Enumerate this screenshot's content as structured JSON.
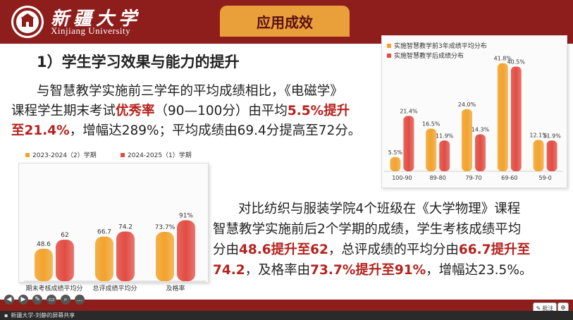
{
  "header": {
    "university_cn": "新疆大学",
    "university_en": "Xinjiang University",
    "slide_title": "应用成效"
  },
  "section_heading": "1）学生学习效果与能力的提升",
  "para1": {
    "t1": "与智慧教学实施前三学年的平均成绩相比，《电磁学》",
    "t2": "课程学生期末考试",
    "h1": "优秀率",
    "t3": "（90—100分）由平均",
    "h2": "5.5%提升",
    "h3": "至21.4%",
    "t4": "，增幅达289%；平均成绩由69.4分提高至72分。"
  },
  "para2": {
    "t1": "对比纺织与服装学院4个班级在《大学物理》课程",
    "t2": "智慧教学实施前后2个学期的成绩，学生考核成绩平均",
    "t3": "分由",
    "h1": "48.6提升至62",
    "t4": "，总评成绩的平均分由",
    "h2": "66.7提升至",
    "h3": "74.2",
    "t5": "，及格率由",
    "h4": "73.7%提升至91%",
    "t6": "，增幅达23.5%。"
  },
  "chart_data": [
    {
      "type": "bar",
      "categories": [
        "期末考核成绩平均分",
        "总评成绩平均分",
        "及格率"
      ],
      "series": [
        {
          "name": "2023-2024（2）学期",
          "values": [
            48.6,
            66.7,
            73.7
          ],
          "labels": [
            "48.6",
            "66.7",
            "73.7%"
          ],
          "color": "#f2a32c"
        },
        {
          "name": "2024-2025（1）学期",
          "values": [
            62,
            74.2,
            91
          ],
          "labels": [
            "62",
            "74.2",
            "91%"
          ],
          "color": "#e24c42"
        }
      ],
      "ylim": [
        0,
        100
      ],
      "legend": "top"
    },
    {
      "type": "bar",
      "categories": [
        "100-90",
        "89-80",
        "79-70",
        "69-60",
        "59-0"
      ],
      "series": [
        {
          "name": "实施智慧教学前3年成绩平均分布",
          "values": [
            5.5,
            16.5,
            24.0,
            41.8,
            12.1
          ],
          "labels": [
            "5.5%",
            "16.5%",
            "24.0%",
            "41.8%",
            "12.1%"
          ],
          "color": "#f2a32c"
        },
        {
          "name": "实施智慧教学后成绩分布",
          "values": [
            21.4,
            11.9,
            14.3,
            40.5,
            11.9
          ],
          "labels": [
            "21.4%",
            "11.9%",
            "14.3%",
            "40.5%",
            "11.9%"
          ],
          "color": "#e24c42"
        }
      ],
      "ylim": [
        0,
        45
      ],
      "legend": "top-left"
    }
  ],
  "controls": {
    "annotate_label": "批注",
    "zoom_icon": "⊕",
    "taskbar_text": "新疆大学-刘静的屏幕共享"
  }
}
